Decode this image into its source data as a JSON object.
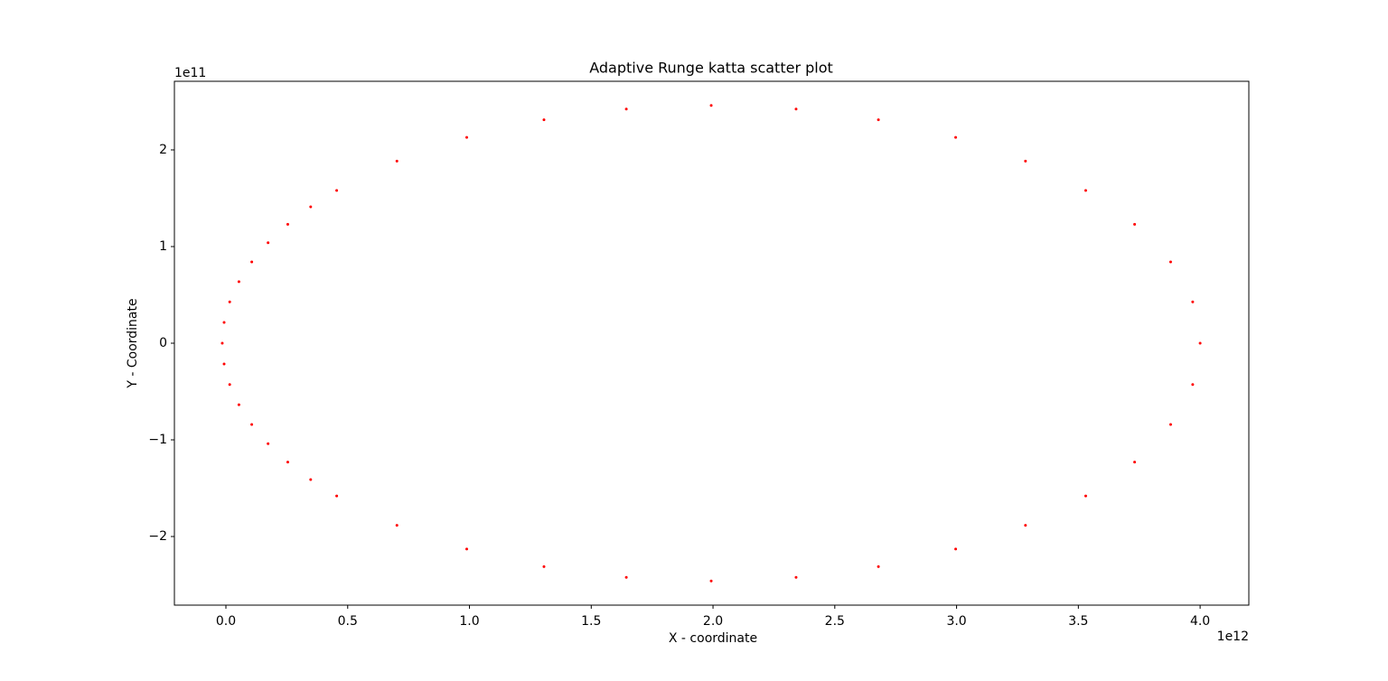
{
  "chart_data": {
    "type": "scatter",
    "title": "Adaptive Runge katta scatter plot",
    "x_label": "X - coordinate",
    "y_label": "Y - Coordinate",
    "x_offset_label": "1e12",
    "y_offset_label": "1e11",
    "color": "#ff0000",
    "x": [
      4000000000000.0,
      3969500000000.0,
      3878900000000.0,
      3731000000000.0,
      3530200000000.0,
      3282900000000.0,
      2996300000000.0,
      2679100000000.0,
      2341000000000.0,
      1992500000000.0,
      1644000000000.0,
      1305900000000.0,
      988800000000.0,
      702100000000.0,
      454800000000.0,
      348000000000.0,
      254000000000.0,
      173100000000.0,
      106100000000.0,
      53400000000.0,
      15500000000.0,
      -7400000000.0,
      -15000000000.0,
      -7400000000.0,
      15500000000.0,
      53400000000.0,
      106100000000.0,
      173100000000.0,
      254000000000.0,
      348000000000.0,
      454800000000.0,
      702100000000.0,
      988800000000.0,
      1305900000000.0,
      1644000000000.0,
      1992500000000.0,
      2341000000000.0,
      2679100000000.0,
      2996300000000.0,
      3282900000000.0,
      3530200000000.0,
      3731000000000.0,
      3878900000000.0,
      3969500000000.0
    ],
    "values": [
      0,
      42700000000.0,
      84100000000.0,
      123000000000.0,
      158100000000.0,
      188400000000.0,
      213000000000.0,
      231200000000.0,
      242300000000.0,
      246000000000.0,
      242300000000.0,
      231200000000.0,
      213000000000.0,
      188400000000.0,
      158100000000.0,
      141100000000.0,
      123000000000.0,
      104000000000.0,
      84100000000.0,
      63700000000.0,
      42700000000.0,
      21440000000.0,
      0,
      -21440000000.0,
      -42700000000.0,
      -63700000000.0,
      -84100000000.0,
      -104000000000.0,
      -123000000000.0,
      -141100000000.0,
      -158100000000.0,
      -188400000000.0,
      -213000000000.0,
      -231200000000.0,
      -242300000000.0,
      -246000000000.0,
      -242300000000.0,
      -231200000000.0,
      -213000000000.0,
      -188400000000.0,
      -158100000000.0,
      -123000000000.0,
      -84100000000.0,
      -42700000000.0
    ],
    "xlim": [
      -211500000000.0,
      4200000000000.0
    ],
    "ylim": [
      -271000000000.0,
      271000000000.0
    ],
    "xticks": [
      {
        "value": 0,
        "label": "0.0"
      },
      {
        "value": 500000000000.0,
        "label": "0.5"
      },
      {
        "value": 1000000000000.0,
        "label": "1.0"
      },
      {
        "value": 1500000000000.0,
        "label": "1.5"
      },
      {
        "value": 2000000000000.0,
        "label": "2.0"
      },
      {
        "value": 2500000000000.0,
        "label": "2.5"
      },
      {
        "value": 3000000000000.0,
        "label": "3.0"
      },
      {
        "value": 3500000000000.0,
        "label": "3.5"
      },
      {
        "value": 4000000000000.0,
        "label": "4.0"
      }
    ],
    "yticks": [
      {
        "value": -200000000000.0,
        "label": "−2"
      },
      {
        "value": -100000000000.0,
        "label": "−1"
      },
      0,
      {
        "value": 100000000000.0,
        "label": "1"
      },
      {
        "value": 200000000000.0,
        "label": "2"
      }
    ],
    "grid": false
  }
}
